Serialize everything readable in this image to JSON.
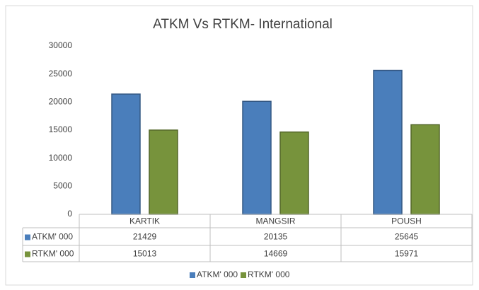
{
  "chart_data": {
    "type": "bar",
    "title": "ATKM Vs RTKM- International",
    "categories": [
      "KARTIK",
      "MANGSIR",
      "POUSH"
    ],
    "series": [
      {
        "name": "ATKM' 000",
        "color": "#4a7ebb",
        "values": [
          21429,
          20135,
          25645
        ]
      },
      {
        "name": "RTKM' 000",
        "color": "#77933c",
        "values": [
          15013,
          14669,
          15971
        ]
      }
    ],
    "ylim": [
      0,
      30000
    ],
    "yticks": [
      0,
      5000,
      10000,
      15000,
      20000,
      25000,
      30000
    ],
    "grid": false,
    "legend": "bottom",
    "data_table": true
  }
}
